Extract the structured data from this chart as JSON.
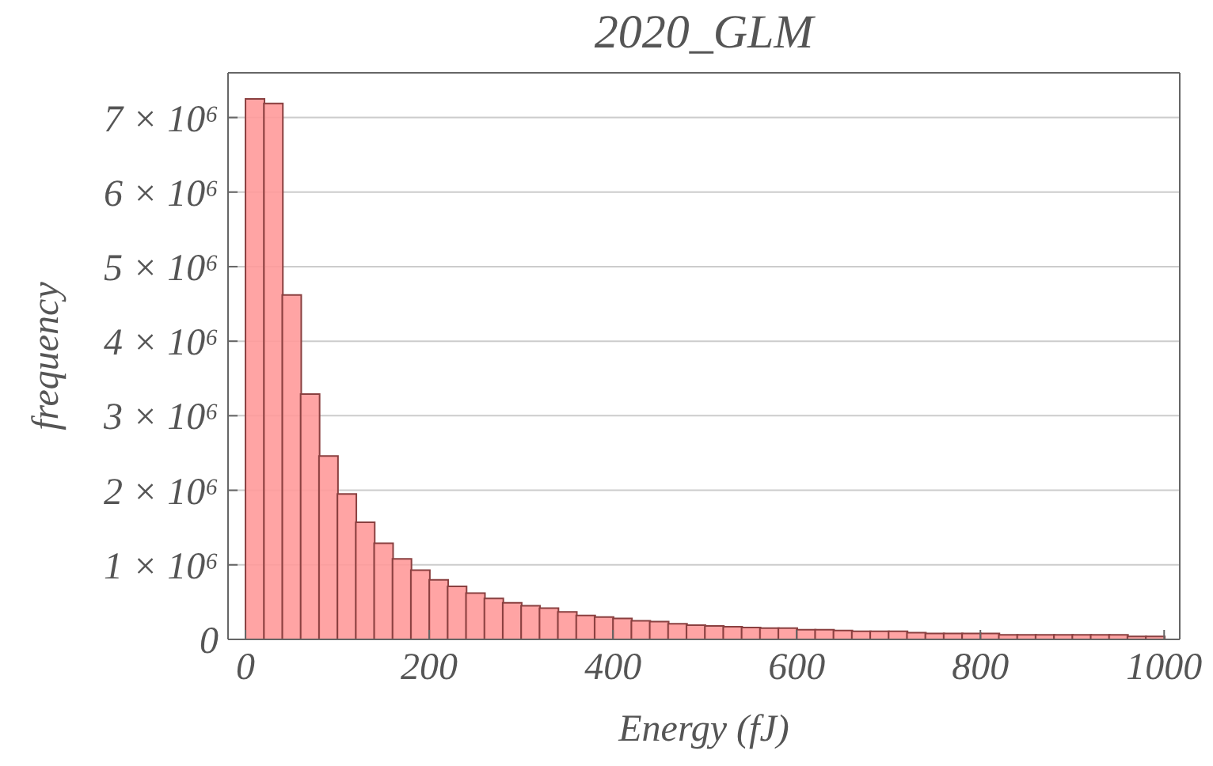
{
  "chart_data": {
    "type": "histogram",
    "title": "2020_GLM",
    "xlabel": "Energy (fJ)",
    "ylabel": "frequency",
    "color": "#ff9a9a",
    "bins": [
      0,
      20,
      40,
      60,
      80,
      100,
      120,
      140,
      160,
      180,
      200,
      220,
      240,
      260,
      280,
      300,
      320,
      340,
      360,
      380,
      400,
      420,
      440,
      460,
      480,
      500,
      520,
      540,
      560,
      580,
      600,
      620,
      640,
      660,
      680,
      700,
      720,
      740,
      760,
      780,
      800,
      820,
      840,
      860,
      880,
      900,
      920,
      940,
      960,
      980,
      1000
    ],
    "values": [
      7250000,
      7190000,
      4620000,
      3290000,
      2460000,
      1950000,
      1570000,
      1290000,
      1080000,
      930000,
      800000,
      710000,
      620000,
      550000,
      490000,
      450000,
      420000,
      370000,
      320000,
      300000,
      280000,
      250000,
      240000,
      210000,
      190000,
      180000,
      170000,
      160000,
      150000,
      150000,
      130000,
      130000,
      120000,
      110000,
      110000,
      110000,
      90000,
      80000,
      80000,
      80000,
      80000,
      60000,
      60000,
      60000,
      60000,
      60000,
      60000,
      60000,
      40000,
      40000
    ],
    "xlim": [
      -19,
      1017
    ],
    "xticks": [
      0,
      200,
      400,
      600,
      800,
      1000
    ],
    "ylim": [
      0,
      7600000
    ],
    "yticks": [
      0,
      {
        "value": 1000000,
        "label": "1 × 10⁶"
      },
      {
        "value": 2000000,
        "label": "2 × 10⁶"
      },
      {
        "value": 3000000,
        "label": "3 × 10⁶"
      },
      {
        "value": 4000000,
        "label": "4 × 10⁶"
      },
      {
        "value": 5000000,
        "label": "5 × 10⁶"
      },
      {
        "value": 6000000,
        "label": "6 × 10⁶"
      },
      {
        "value": 7000000,
        "label": "7 × 10⁶"
      }
    ],
    "grid": "y",
    "legend": false
  }
}
